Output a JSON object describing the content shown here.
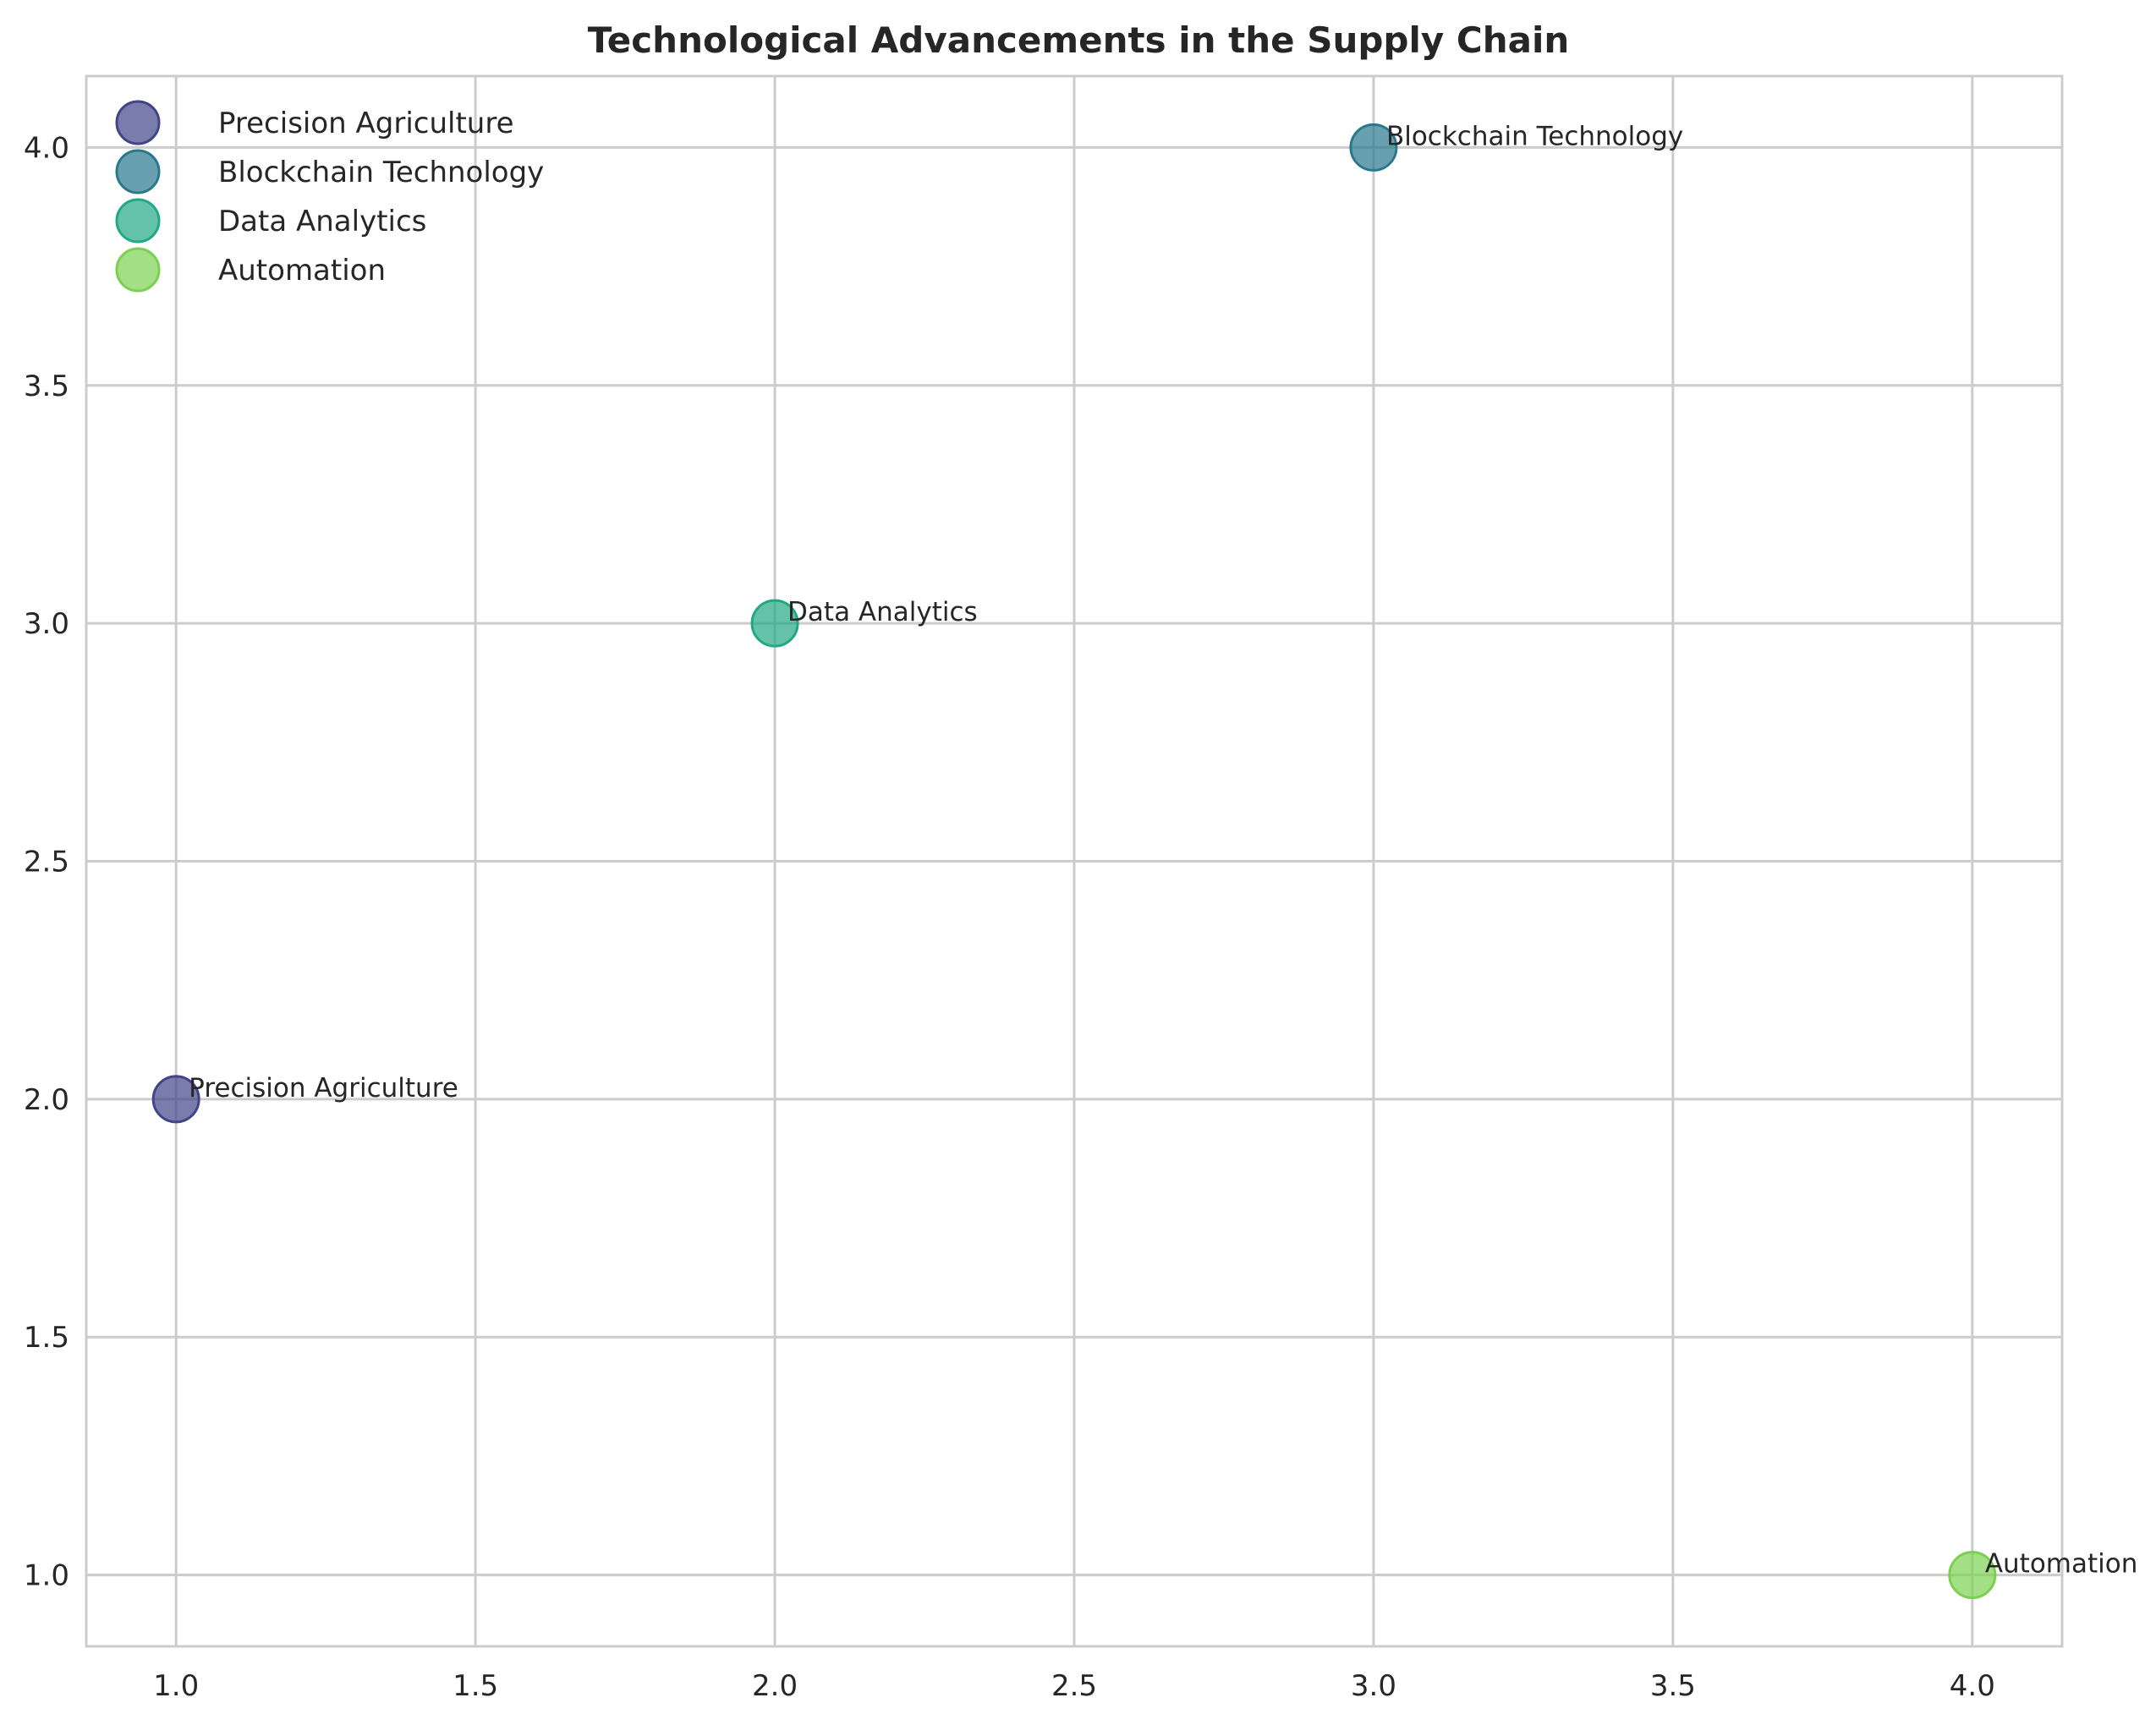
{
  "chart_data": {
    "type": "scatter",
    "title": "Technological Advancements in the Supply Chain",
    "xlabel": "",
    "ylabel": "",
    "xlim": [
      0.85,
      4.15
    ],
    "ylim": [
      0.85,
      4.15
    ],
    "xticks": [
      1.0,
      1.5,
      2.0,
      2.5,
      3.0,
      3.5,
      4.0
    ],
    "yticks": [
      1.0,
      1.5,
      2.0,
      2.5,
      3.0,
      3.5,
      4.0
    ],
    "xtick_labels": [
      "1.0",
      "1.5",
      "2.0",
      "2.5",
      "3.0",
      "3.5",
      "4.0"
    ],
    "ytick_labels": [
      "1.0",
      "1.5",
      "2.0",
      "2.5",
      "3.0",
      "3.5",
      "4.0"
    ],
    "grid": true,
    "legend_position": "top-left",
    "series": [
      {
        "name": "Precision Agriculture",
        "x": 1,
        "y": 2,
        "label": "Precision Agriculture",
        "color": "#414487"
      },
      {
        "name": "Blockchain Technology",
        "x": 3,
        "y": 4,
        "label": "Blockchain Technology",
        "color": "#2a788e"
      },
      {
        "name": "Data Analytics",
        "x": 2,
        "y": 3,
        "label": "Data Analytics",
        "color": "#22a884"
      },
      {
        "name": "Automation",
        "x": 4,
        "y": 1,
        "label": "Automation",
        "color": "#7ad151"
      }
    ]
  }
}
